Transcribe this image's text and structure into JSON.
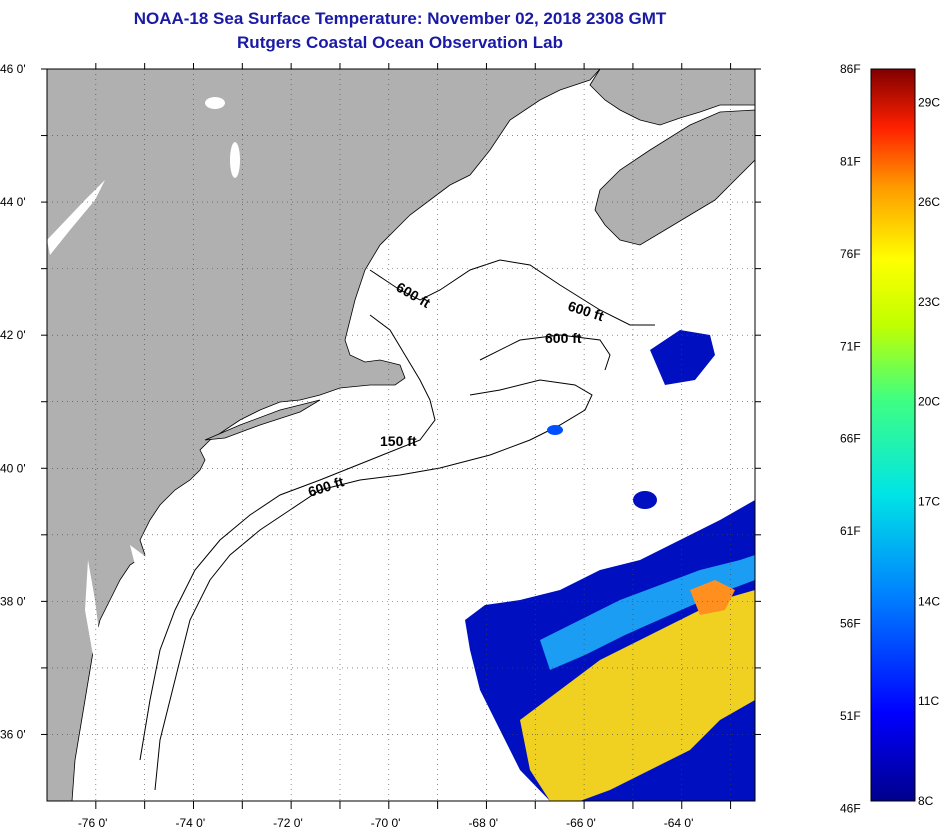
{
  "header": {
    "title": "NOAA-18 Sea Surface Temperature:  November 02, 2018 2308 GMT",
    "subtitle": "Rutgers Coastal Ocean Observation Lab"
  },
  "map": {
    "latitude_labels": [
      "46 0'",
      "44 0'",
      "42 0'",
      "40 0'",
      "38 0'",
      "36 0'"
    ],
    "longitude_labels": [
      "-76 0'",
      "-74 0'",
      "-72 0'",
      "-70 0'",
      "-68 0'",
      "-66 0'",
      "-64 0'"
    ],
    "lat_range": [
      35,
      46
    ],
    "lon_range": [
      -77,
      -62.5
    ],
    "contour_labels": [
      "600 ft",
      "600 ft",
      "600 ft",
      "150 ft",
      "600 ft"
    ],
    "colors": {
      "land": "#b0b0b0",
      "ocean": "#ffffff",
      "title": "#1a1aa6"
    }
  },
  "colorbar": {
    "fahrenheit_labels": [
      "86F",
      "81F",
      "76F",
      "71F",
      "66F",
      "61F",
      "56F",
      "51F",
      "46F"
    ],
    "celsius_labels": [
      "29C",
      "26C",
      "23C",
      "20C",
      "17C",
      "14C",
      "11C",
      "8C"
    ],
    "range_c": [
      8,
      30
    ]
  }
}
